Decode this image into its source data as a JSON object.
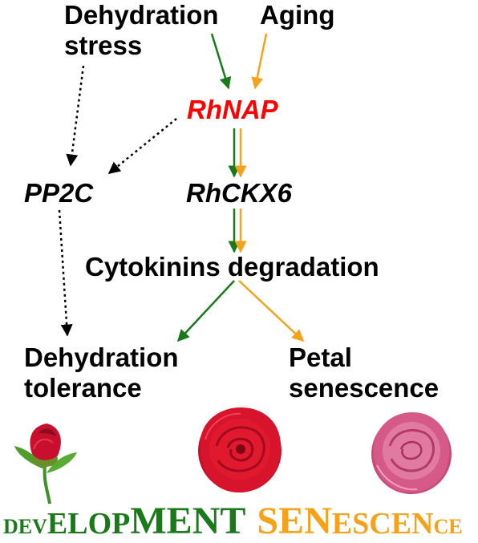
{
  "nodes": {
    "dehydration_stress": [
      "Dehydration",
      "stress"
    ],
    "aging": "Aging",
    "rhnap": "RhNAP",
    "pp2c": "PP2C",
    "rhckx6": "RhCKX6",
    "cytokinins_degradation": "Cytokinins degradation",
    "dehydration_tolerance": [
      "Dehydration",
      "tolerance"
    ],
    "petal_senescence": [
      "Petal",
      "senescence"
    ]
  },
  "colors": {
    "text": "#000000",
    "rhnap": "#ff0000",
    "dehydration_path": "#1a7a1a",
    "aging_path": "#f5a21b",
    "dotted": "#000000",
    "development_text": "#1a7a1a",
    "senescence_text": "#f5a21b"
  },
  "wordart": {
    "development": [
      {
        "t": "DEV",
        "size": "s"
      },
      {
        "t": "ELOP",
        "size": "m"
      },
      {
        "t": "MENT",
        "size": "l"
      }
    ],
    "senescence": [
      {
        "t": "SEN",
        "size": "l"
      },
      {
        "t": "ES",
        "size": "m"
      },
      {
        "t": "CEN",
        "size": "m"
      },
      {
        "t": "CE",
        "size": "s"
      }
    ]
  },
  "images": [
    "rose-bud",
    "red-rose-open",
    "pink-rose-senescent"
  ]
}
